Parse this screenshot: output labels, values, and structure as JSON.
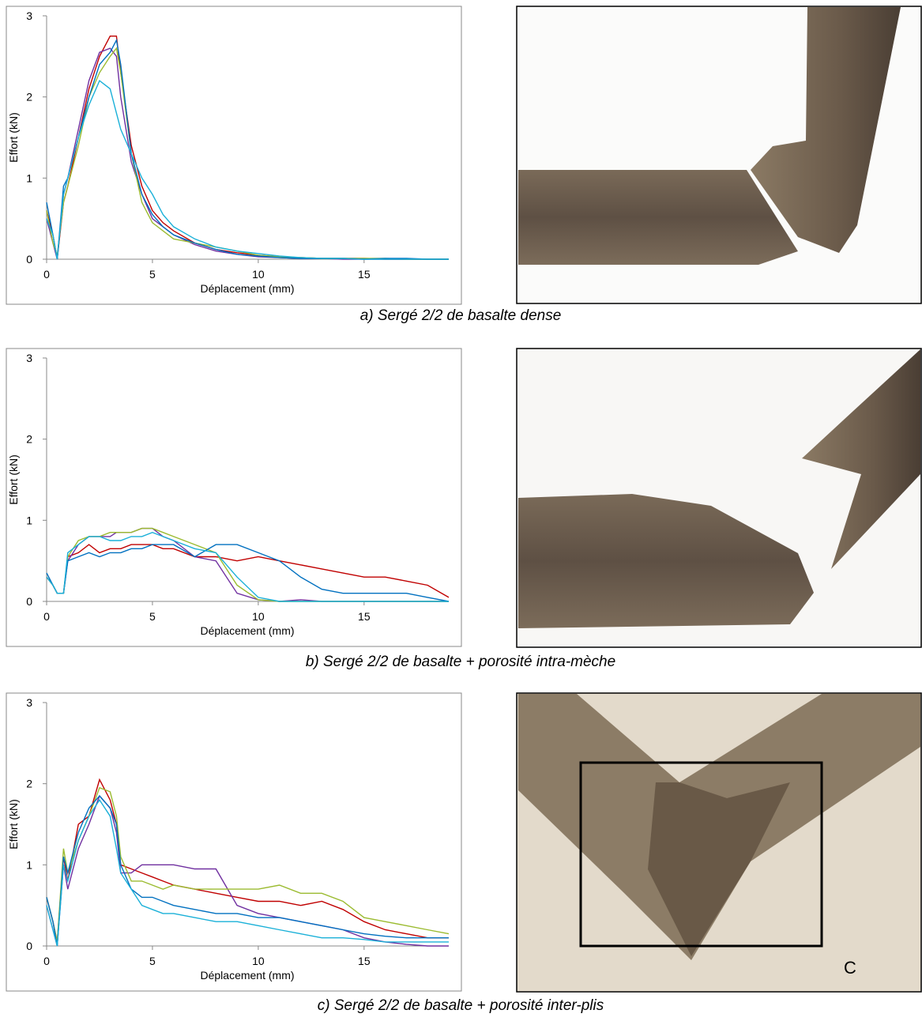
{
  "chart_data": [
    {
      "type": "line",
      "caption": "a) Sergé 2/2 de basalte dense",
      "x_label": "Déplacement (mm)",
      "y_label": "Effort (kN)",
      "xlim": [
        0,
        19
      ],
      "ylim": [
        0,
        3
      ],
      "xticks": [
        0,
        5,
        10,
        15
      ],
      "yticks": [
        0,
        1,
        2,
        3
      ],
      "x": [
        0,
        0.3,
        0.5,
        0.8,
        1,
        1.5,
        2,
        2.5,
        3,
        3.3,
        3.5,
        4,
        4.5,
        5,
        5.5,
        6,
        7,
        8,
        9,
        10,
        11,
        12,
        13,
        14,
        15,
        16,
        17,
        18,
        19
      ],
      "series": [
        {
          "color": "#c00000",
          "values": [
            0.6,
            0.3,
            0,
            0.7,
            0.9,
            1.5,
            2.1,
            2.5,
            2.75,
            2.75,
            2.3,
            1.4,
            0.9,
            0.6,
            0.45,
            0.35,
            0.2,
            0.12,
            0.08,
            0.05,
            0.03,
            0.02,
            0.01,
            0.01,
            0.01,
            0,
            0,
            0,
            0
          ]
        },
        {
          "color": "#7030a0",
          "values": [
            0.5,
            0.2,
            0,
            0.8,
            1.0,
            1.6,
            2.2,
            2.55,
            2.6,
            2.5,
            2.0,
            1.2,
            0.8,
            0.5,
            0.4,
            0.3,
            0.18,
            0.1,
            0.06,
            0.03,
            0.02,
            0.01,
            0.01,
            0,
            0,
            0,
            0,
            0,
            0
          ]
        },
        {
          "color": "#9bbb30",
          "values": [
            0.6,
            0.2,
            0.05,
            0.7,
            0.9,
            1.4,
            2.0,
            2.3,
            2.5,
            2.6,
            2.3,
            1.3,
            0.7,
            0.45,
            0.35,
            0.25,
            0.2,
            0.15,
            0.1,
            0.05,
            0.03,
            0.02,
            0.01,
            0.01,
            0.01,
            0.01,
            0,
            0,
            0
          ]
        },
        {
          "color": "#0070c0",
          "values": [
            0.7,
            0.3,
            0,
            0.9,
            1.0,
            1.5,
            2.0,
            2.4,
            2.55,
            2.7,
            2.4,
            1.3,
            0.8,
            0.55,
            0.4,
            0.3,
            0.2,
            0.12,
            0.06,
            0.04,
            0.02,
            0.01,
            0.01,
            0.01,
            0,
            0.01,
            0.01,
            0,
            0
          ]
        },
        {
          "color": "#1ab0d8",
          "values": [
            0.5,
            0.3,
            0,
            0.8,
            1.0,
            1.5,
            1.9,
            2.2,
            2.1,
            1.8,
            1.6,
            1.3,
            1.0,
            0.8,
            0.55,
            0.4,
            0.25,
            0.15,
            0.1,
            0.07,
            0.04,
            0.02,
            0.01,
            0.01,
            0,
            0,
            0,
            0,
            0
          ]
        }
      ]
    },
    {
      "type": "line",
      "caption": "b) Sergé 2/2 de basalte + porosité intra-mèche",
      "x_label": "Déplacement (mm)",
      "y_label": "Effort (kN)",
      "xlim": [
        0,
        19
      ],
      "ylim": [
        0,
        3
      ],
      "xticks": [
        0,
        5,
        10,
        15
      ],
      "yticks": [
        0,
        1,
        2,
        3
      ],
      "x": [
        0,
        0.3,
        0.5,
        0.8,
        1,
        1.5,
        2,
        2.5,
        3,
        3.3,
        3.5,
        4,
        4.5,
        5,
        5.5,
        6,
        7,
        8,
        9,
        10,
        11,
        12,
        13,
        14,
        15,
        16,
        17,
        18,
        19
      ],
      "series": [
        {
          "color": "#c00000",
          "values": [
            0.3,
            0.2,
            0.1,
            0.1,
            0.55,
            0.6,
            0.7,
            0.6,
            0.65,
            0.65,
            0.65,
            0.7,
            0.7,
            0.7,
            0.65,
            0.65,
            0.55,
            0.55,
            0.5,
            0.55,
            0.5,
            0.45,
            0.4,
            0.35,
            0.3,
            0.3,
            0.25,
            0.2,
            0.05
          ]
        },
        {
          "color": "#7030a0",
          "values": [
            0.3,
            0.2,
            0.1,
            0.1,
            0.5,
            0.7,
            0.8,
            0.8,
            0.8,
            0.85,
            0.85,
            0.85,
            0.9,
            0.9,
            0.8,
            0.75,
            0.55,
            0.5,
            0.1,
            0.02,
            0,
            0.02,
            0,
            0,
            0,
            0,
            0,
            0,
            0
          ]
        },
        {
          "color": "#9bbb30",
          "values": [
            0.3,
            0.2,
            0.1,
            0.1,
            0.55,
            0.75,
            0.8,
            0.8,
            0.85,
            0.85,
            0.85,
            0.85,
            0.9,
            0.9,
            0.85,
            0.8,
            0.7,
            0.6,
            0.2,
            0.02,
            0,
            0,
            0,
            0,
            0,
            0,
            0,
            0,
            0
          ]
        },
        {
          "color": "#0070c0",
          "values": [
            0.35,
            0.2,
            0.1,
            0.1,
            0.5,
            0.55,
            0.6,
            0.55,
            0.6,
            0.6,
            0.6,
            0.65,
            0.65,
            0.7,
            0.7,
            0.7,
            0.55,
            0.7,
            0.7,
            0.6,
            0.5,
            0.3,
            0.15,
            0.1,
            0.1,
            0.1,
            0.1,
            0.05,
            0
          ]
        },
        {
          "color": "#1ab0d8",
          "values": [
            0.3,
            0.2,
            0.1,
            0.1,
            0.6,
            0.7,
            0.8,
            0.8,
            0.75,
            0.75,
            0.75,
            0.8,
            0.8,
            0.85,
            0.8,
            0.75,
            0.65,
            0.6,
            0.3,
            0.05,
            0,
            0,
            0,
            0,
            0,
            0,
            0,
            0,
            0
          ]
        }
      ]
    },
    {
      "type": "line",
      "caption": "c) Sergé 2/2 de basalte + porosité inter-plis",
      "x_label": "Déplacement (mm)",
      "y_label": "Effort (kN)",
      "xlim": [
        0,
        19
      ],
      "ylim": [
        0,
        3
      ],
      "xticks": [
        0,
        5,
        10,
        15
      ],
      "yticks": [
        0,
        1,
        2,
        3
      ],
      "x": [
        0,
        0.3,
        0.5,
        0.8,
        1,
        1.5,
        2,
        2.5,
        3,
        3.3,
        3.5,
        4,
        4.5,
        5,
        5.5,
        6,
        7,
        8,
        9,
        10,
        11,
        12,
        13,
        14,
        15,
        16,
        17,
        18,
        19
      ],
      "series": [
        {
          "color": "#c00000",
          "values": [
            0.6,
            0.3,
            0.05,
            1.1,
            0.8,
            1.5,
            1.6,
            2.05,
            1.8,
            1.5,
            1.0,
            0.95,
            0.9,
            0.85,
            0.8,
            0.75,
            0.7,
            0.65,
            0.6,
            0.55,
            0.55,
            0.5,
            0.55,
            0.45,
            0.3,
            0.2,
            0.15,
            0.1,
            0.1
          ]
        },
        {
          "color": "#7030a0",
          "values": [
            0.5,
            0.2,
            0,
            1.0,
            0.7,
            1.2,
            1.5,
            1.85,
            1.7,
            1.4,
            0.9,
            0.9,
            1.0,
            1.0,
            1.0,
            1.0,
            0.95,
            0.95,
            0.5,
            0.4,
            0.35,
            0.3,
            0.25,
            0.2,
            0.1,
            0.05,
            0.02,
            0,
            0
          ]
        },
        {
          "color": "#9bbb30",
          "values": [
            0.6,
            0.3,
            0.05,
            1.2,
            0.9,
            1.3,
            1.6,
            1.95,
            1.9,
            1.6,
            1.1,
            0.8,
            0.8,
            0.75,
            0.7,
            0.75,
            0.7,
            0.7,
            0.7,
            0.7,
            0.75,
            0.65,
            0.65,
            0.55,
            0.35,
            0.3,
            0.25,
            0.2,
            0.15
          ]
        },
        {
          "color": "#0070c0",
          "values": [
            0.6,
            0.3,
            0,
            1.1,
            0.9,
            1.4,
            1.7,
            1.85,
            1.7,
            1.5,
            1.0,
            0.7,
            0.6,
            0.6,
            0.55,
            0.5,
            0.45,
            0.4,
            0.4,
            0.35,
            0.35,
            0.3,
            0.25,
            0.2,
            0.15,
            0.12,
            0.1,
            0.1,
            0.1
          ]
        },
        {
          "color": "#1ab0d8",
          "values": [
            0.5,
            0.2,
            0,
            1.0,
            0.8,
            1.3,
            1.6,
            1.8,
            1.6,
            1.2,
            0.9,
            0.7,
            0.5,
            0.45,
            0.4,
            0.4,
            0.35,
            0.3,
            0.3,
            0.25,
            0.2,
            0.15,
            0.1,
            0.1,
            0.08,
            0.05,
            0.05,
            0.05,
            0.05
          ]
        }
      ]
    }
  ],
  "inset_label": "C"
}
